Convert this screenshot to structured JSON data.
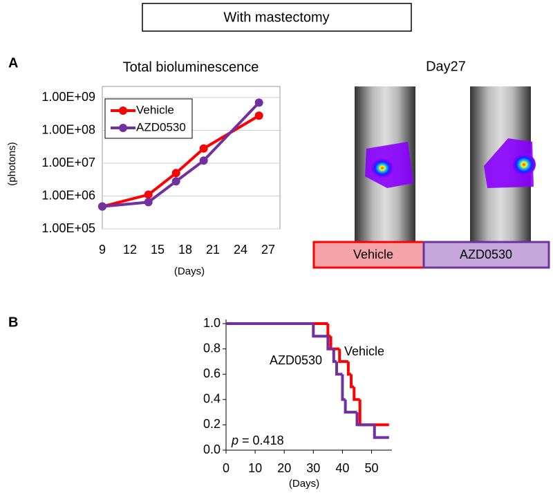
{
  "header": "With mastectomy",
  "panel_labels": [
    "A",
    "B"
  ],
  "images": {
    "title": "Day27",
    "labels": [
      "Vehicle",
      "AZD0530"
    ]
  },
  "chart_data": [
    {
      "type": "line",
      "title": "Total bioluminescence",
      "y_label": "(photons)",
      "x_label": "(Days)",
      "log_y": true,
      "grid": true,
      "legend": "upper left",
      "x": [
        9,
        14,
        17,
        20,
        26
      ],
      "series": [
        {
          "name": "Vehicle",
          "color": "#ff0000",
          "values": [
            480000,
            1100000,
            5000000,
            28000000,
            280000000
          ]
        },
        {
          "name": "AZD0530",
          "color": "#7030a0",
          "values": [
            480000,
            650000,
            2800000,
            12000000,
            700000000
          ]
        }
      ],
      "xlim": [
        9,
        27
      ],
      "xticks": [
        9,
        12,
        15,
        18,
        21,
        24,
        27
      ],
      "ylim": [
        100000,
        1000000000
      ],
      "yticks": [
        {
          "value": 100000,
          "label": "1.00E+05"
        },
        {
          "value": 1000000,
          "label": "1.00E+06"
        },
        {
          "value": 10000000,
          "label": "1.00E+07"
        },
        {
          "value": 100000000,
          "label": "1.00E+08"
        },
        {
          "value": 1000000000,
          "label": "1.00E+09"
        }
      ]
    },
    {
      "type": "step",
      "x_label": "(Days)",
      "p_symbol": "p",
      "p_text": "= 0.418",
      "series": [
        {
          "name": "Vehicle",
          "color": "#ff0000",
          "x": [
            0,
            35,
            36,
            39,
            42,
            43,
            44,
            46,
            56
          ],
          "values": [
            1,
            0.9,
            0.8,
            0.7,
            0.6,
            0.5,
            0.4,
            0.2,
            0.2
          ]
        },
        {
          "name": "AZD0530",
          "color": "#7030a0",
          "x": [
            0,
            30,
            35,
            37,
            38,
            40,
            41,
            45,
            51,
            56
          ],
          "values": [
            1,
            0.9,
            0.8,
            0.7,
            0.6,
            0.4,
            0.3,
            0.2,
            0.1,
            0.1
          ]
        }
      ],
      "xlim": [
        0,
        57
      ],
      "xticks": [
        0,
        10,
        20,
        30,
        40,
        50
      ],
      "ylim": [
        0,
        1
      ],
      "yticks": [
        {
          "value": 0,
          "label": "0.0"
        },
        {
          "value": 0.2,
          "label": "0.2"
        },
        {
          "value": 0.4,
          "label": "0.4"
        },
        {
          "value": 0.6,
          "label": "0.6"
        },
        {
          "value": 0.8,
          "label": "0.8"
        },
        {
          "value": 1,
          "label": "1.0"
        }
      ]
    }
  ]
}
